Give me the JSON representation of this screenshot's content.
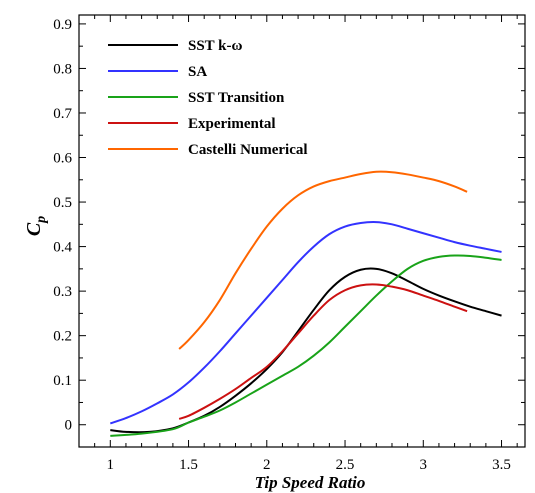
{
  "chart_data": {
    "type": "line",
    "title": "",
    "xlabel": "Tip Speed Ratio",
    "ylabel_main": "C",
    "ylabel_sub": "p",
    "xlim": [
      0.8,
      3.65
    ],
    "ylim": [
      -0.05,
      0.92
    ],
    "xticks": [
      1,
      1.5,
      2,
      2.5,
      3,
      3.5
    ],
    "xtick_labels": [
      "1",
      "1.5",
      "2",
      "2.5",
      "3",
      "3.5"
    ],
    "yticks": [
      0,
      0.1,
      0.2,
      0.3,
      0.4,
      0.5,
      0.6,
      0.7,
      0.8,
      0.9
    ],
    "ytick_labels": [
      "0",
      "0.1",
      "0.2",
      "0.3",
      "0.4",
      "0.5",
      "0.6",
      "0.7",
      "0.8",
      "0.9"
    ],
    "grid": false,
    "legend_position": "top-left",
    "series": [
      {
        "name": "SST k-ω",
        "color": "#000000",
        "points": [
          [
            1.0,
            -0.012
          ],
          [
            1.1,
            -0.016
          ],
          [
            1.25,
            -0.016
          ],
          [
            1.4,
            -0.008
          ],
          [
            1.5,
            0.005
          ],
          [
            1.6,
            0.02
          ],
          [
            1.7,
            0.04
          ],
          [
            1.8,
            0.065
          ],
          [
            1.9,
            0.093
          ],
          [
            2.0,
            0.125
          ],
          [
            2.1,
            0.163
          ],
          [
            2.2,
            0.21
          ],
          [
            2.3,
            0.258
          ],
          [
            2.4,
            0.302
          ],
          [
            2.5,
            0.332
          ],
          [
            2.6,
            0.348
          ],
          [
            2.7,
            0.35
          ],
          [
            2.8,
            0.34
          ],
          [
            2.9,
            0.323
          ],
          [
            3.0,
            0.305
          ],
          [
            3.1,
            0.29
          ],
          [
            3.2,
            0.277
          ],
          [
            3.3,
            0.265
          ],
          [
            3.4,
            0.255
          ],
          [
            3.5,
            0.245
          ]
        ]
      },
      {
        "name": "SA",
        "color": "#3333ff",
        "points": [
          [
            1.0,
            0.003
          ],
          [
            1.1,
            0.015
          ],
          [
            1.2,
            0.03
          ],
          [
            1.3,
            0.048
          ],
          [
            1.4,
            0.068
          ],
          [
            1.5,
            0.095
          ],
          [
            1.6,
            0.128
          ],
          [
            1.7,
            0.165
          ],
          [
            1.8,
            0.205
          ],
          [
            1.9,
            0.245
          ],
          [
            2.0,
            0.285
          ],
          [
            2.1,
            0.325
          ],
          [
            2.2,
            0.365
          ],
          [
            2.3,
            0.4
          ],
          [
            2.4,
            0.428
          ],
          [
            2.5,
            0.445
          ],
          [
            2.6,
            0.453
          ],
          [
            2.7,
            0.455
          ],
          [
            2.8,
            0.45
          ],
          [
            2.9,
            0.44
          ],
          [
            3.0,
            0.43
          ],
          [
            3.1,
            0.42
          ],
          [
            3.2,
            0.41
          ],
          [
            3.3,
            0.402
          ],
          [
            3.4,
            0.395
          ],
          [
            3.5,
            0.388
          ]
        ]
      },
      {
        "name": "SST Transition",
        "color": "#19a319",
        "points": [
          [
            1.0,
            -0.025
          ],
          [
            1.2,
            -0.02
          ],
          [
            1.4,
            -0.01
          ],
          [
            1.5,
            0.005
          ],
          [
            1.6,
            0.018
          ],
          [
            1.7,
            0.032
          ],
          [
            1.8,
            0.05
          ],
          [
            1.9,
            0.07
          ],
          [
            2.0,
            0.09
          ],
          [
            2.1,
            0.11
          ],
          [
            2.2,
            0.13
          ],
          [
            2.3,
            0.155
          ],
          [
            2.4,
            0.185
          ],
          [
            2.5,
            0.22
          ],
          [
            2.6,
            0.255
          ],
          [
            2.7,
            0.29
          ],
          [
            2.8,
            0.322
          ],
          [
            2.9,
            0.35
          ],
          [
            3.0,
            0.368
          ],
          [
            3.1,
            0.377
          ],
          [
            3.2,
            0.38
          ],
          [
            3.3,
            0.379
          ],
          [
            3.4,
            0.375
          ],
          [
            3.5,
            0.37
          ]
        ]
      },
      {
        "name": "Experimental",
        "color": "#cc1111",
        "points": [
          [
            1.44,
            0.013
          ],
          [
            1.5,
            0.02
          ],
          [
            1.6,
            0.038
          ],
          [
            1.7,
            0.058
          ],
          [
            1.8,
            0.08
          ],
          [
            1.9,
            0.105
          ],
          [
            2.0,
            0.13
          ],
          [
            2.1,
            0.165
          ],
          [
            2.2,
            0.205
          ],
          [
            2.3,
            0.245
          ],
          [
            2.4,
            0.28
          ],
          [
            2.5,
            0.302
          ],
          [
            2.6,
            0.313
          ],
          [
            2.7,
            0.315
          ],
          [
            2.8,
            0.31
          ],
          [
            2.9,
            0.302
          ],
          [
            3.0,
            0.29
          ],
          [
            3.1,
            0.278
          ],
          [
            3.2,
            0.265
          ],
          [
            3.28,
            0.255
          ]
        ]
      },
      {
        "name": "Castelli Numerical",
        "color": "#ff6600",
        "points": [
          [
            1.44,
            0.17
          ],
          [
            1.5,
            0.19
          ],
          [
            1.6,
            0.23
          ],
          [
            1.7,
            0.28
          ],
          [
            1.8,
            0.34
          ],
          [
            1.9,
            0.395
          ],
          [
            2.0,
            0.445
          ],
          [
            2.1,
            0.485
          ],
          [
            2.2,
            0.515
          ],
          [
            2.3,
            0.535
          ],
          [
            2.4,
            0.547
          ],
          [
            2.5,
            0.555
          ],
          [
            2.6,
            0.563
          ],
          [
            2.7,
            0.568
          ],
          [
            2.8,
            0.567
          ],
          [
            2.9,
            0.562
          ],
          [
            3.0,
            0.555
          ],
          [
            3.1,
            0.547
          ],
          [
            3.2,
            0.535
          ],
          [
            3.28,
            0.523
          ]
        ]
      }
    ]
  }
}
